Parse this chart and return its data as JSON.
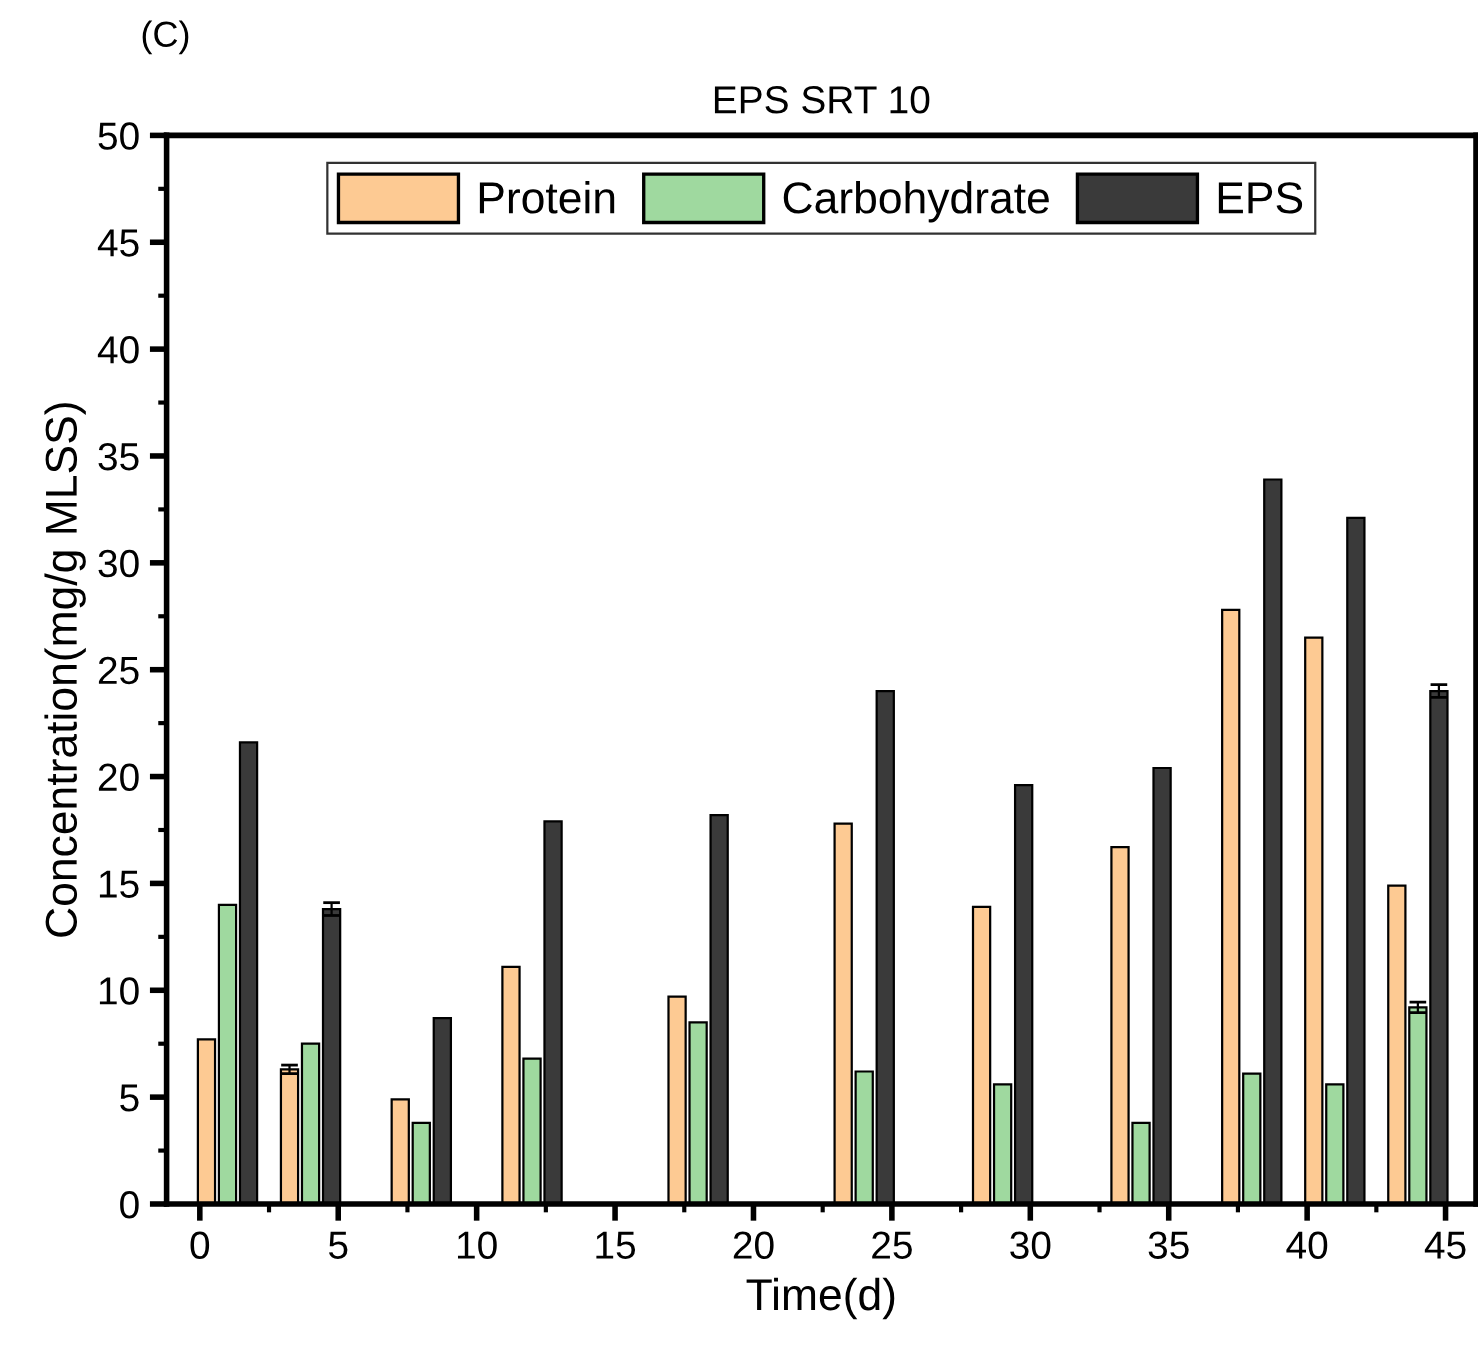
{
  "chart_data": {
    "type": "bar",
    "title": "EPS SRT 10",
    "xlabel": "Time(d)",
    "ylabel": "Concentration(mg/g MLSS)",
    "annotations": [
      "(C)"
    ],
    "xlim": [
      -1.2,
      46.1
    ],
    "xticks": [
      0,
      5,
      10,
      15,
      20,
      25,
      30,
      35,
      40,
      45
    ],
    "ylim": [
      0,
      50
    ],
    "yticks": [
      0,
      5,
      10,
      15,
      20,
      25,
      30,
      35,
      40,
      45,
      50
    ],
    "grid": false,
    "legend": "top",
    "series": [
      {
        "name": "Protein",
        "color": "#fdca93",
        "x": [
          0.24,
          3.24,
          7.24,
          11.24,
          17.24,
          23.24,
          28.24,
          33.24,
          37.24,
          40.24,
          43.24
        ],
        "values": [
          7.7,
          6.3,
          4.9,
          11.1,
          9.7,
          17.8,
          13.9,
          16.7,
          27.8,
          26.5,
          14.9
        ],
        "errors": [
          null,
          0.2,
          null,
          null,
          null,
          null,
          null,
          null,
          null,
          null,
          null
        ]
      },
      {
        "name": "Carbohydrate",
        "color": "#9fd99f",
        "x": [
          1,
          4,
          8,
          12,
          18,
          24,
          29,
          34,
          38,
          41,
          44
        ],
        "values": [
          14.0,
          7.5,
          3.8,
          6.8,
          8.5,
          6.2,
          5.6,
          3.8,
          6.1,
          5.6,
          9.2
        ],
        "errors": [
          null,
          null,
          null,
          null,
          null,
          null,
          null,
          null,
          null,
          null,
          0.25
        ]
      },
      {
        "name": "EPS",
        "color": "#3a3a3a",
        "x": [
          1.76,
          4.76,
          8.76,
          12.76,
          18.76,
          24.76,
          29.76,
          34.76,
          38.76,
          41.76,
          44.76
        ],
        "values": [
          21.6,
          13.8,
          8.7,
          17.9,
          18.2,
          24.0,
          19.6,
          20.4,
          33.9,
          32.1,
          24.0
        ],
        "errors": [
          null,
          0.3,
          null,
          null,
          null,
          null,
          null,
          null,
          null,
          null,
          0.3
        ]
      }
    ]
  }
}
